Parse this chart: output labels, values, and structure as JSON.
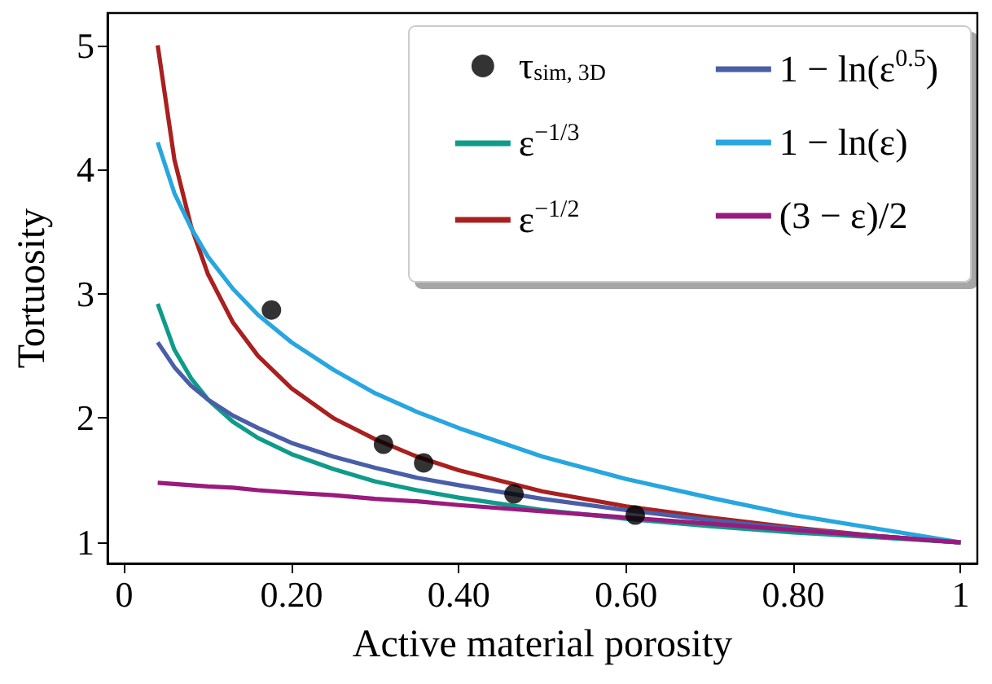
{
  "chart_data": {
    "type": "line",
    "xlabel": "Active material porosity",
    "ylabel": "Tortuosity",
    "xlim": [
      -0.02,
      1.02
    ],
    "ylim": [
      0.83,
      5.26
    ],
    "xticks": [
      0,
      {
        "value": 0.2,
        "label": "0.20"
      },
      {
        "value": 0.4,
        "label": "0.40"
      },
      {
        "value": 0.6,
        "label": "0.60"
      },
      {
        "value": 0.8,
        "label": "0.80"
      },
      1
    ],
    "yticks": [
      1,
      2,
      3,
      4,
      5
    ],
    "grid": false,
    "legend": "top right",
    "line_style": "solid",
    "x": [
      0.04,
      0.06,
      0.08,
      0.1,
      0.13,
      0.16,
      0.2,
      0.25,
      0.3,
      0.35,
      0.4,
      0.5,
      0.6,
      0.7,
      0.8,
      0.9,
      1.0
    ],
    "series": [
      {
        "name": "τ$_{sim, 3D}$",
        "type": "scatter",
        "marker": "circle",
        "color": "#000000",
        "x": [
          0.176,
          0.31,
          0.358,
          0.466,
          0.611
        ],
        "values": [
          2.87,
          1.79,
          1.64,
          1.39,
          1.22
        ]
      },
      {
        "name": "ε$^{−1/3}$",
        "marker": "none",
        "color": "#0f9b8a",
        "values": [
          2.92,
          2.55,
          2.32,
          2.15,
          1.97,
          1.84,
          1.71,
          1.59,
          1.49,
          1.42,
          1.36,
          1.26,
          1.19,
          1.13,
          1.08,
          1.04,
          1.0
        ]
      },
      {
        "name": "ε$^{−1/2}$",
        "marker": "none",
        "color": "#a8201f",
        "values": [
          5.0,
          4.08,
          3.54,
          3.16,
          2.77,
          2.5,
          2.24,
          2.0,
          1.83,
          1.69,
          1.58,
          1.41,
          1.29,
          1.2,
          1.12,
          1.05,
          1.0
        ]
      },
      {
        "name": "1 − ln(ε$^{0.5}$)",
        "marker": "none",
        "color": "#4a5ea8",
        "values": [
          2.61,
          2.41,
          2.26,
          2.15,
          2.02,
          1.92,
          1.8,
          1.69,
          1.6,
          1.52,
          1.46,
          1.35,
          1.26,
          1.18,
          1.11,
          1.05,
          1.0
        ]
      },
      {
        "name": "1 − ln(ε)",
        "marker": "none",
        "color": "#27a6e0",
        "values": [
          4.22,
          3.81,
          3.53,
          3.3,
          3.04,
          2.83,
          2.61,
          2.39,
          2.2,
          2.05,
          1.92,
          1.69,
          1.51,
          1.36,
          1.22,
          1.11,
          1.0
        ]
      },
      {
        "name": "(3 − ε)/2",
        "marker": "none",
        "color": "#9a1a7e",
        "values": [
          1.48,
          1.47,
          1.46,
          1.45,
          1.44,
          1.42,
          1.4,
          1.38,
          1.35,
          1.33,
          1.3,
          1.25,
          1.2,
          1.15,
          1.1,
          1.05,
          1.0
        ]
      }
    ]
  }
}
